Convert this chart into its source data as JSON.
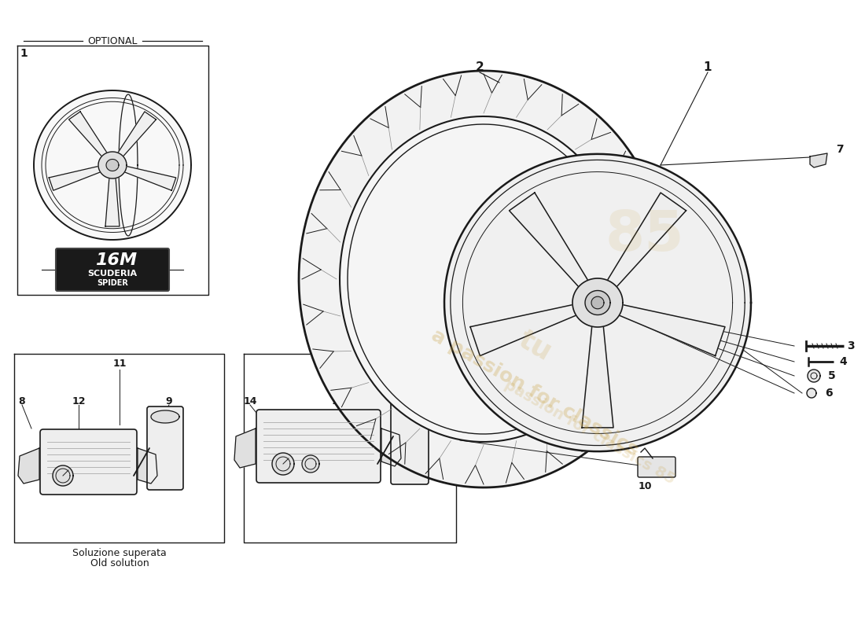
{
  "background": "#ffffff",
  "line_color": "#1a1a1a",
  "watermark_color": "#c8a040",
  "labels": {
    "optional": "OPTIONAL",
    "badge1": "16M",
    "badge2": "SCUDERIA",
    "badge3": "SPIDER",
    "old1": "Soluzione superata",
    "old2": "Old solution"
  }
}
